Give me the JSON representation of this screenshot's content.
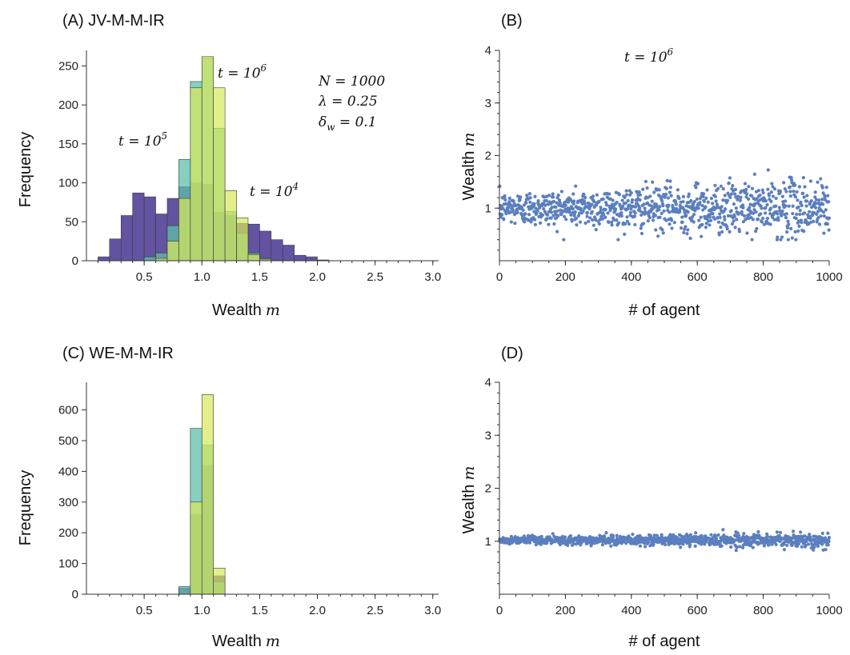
{
  "chart_data": [
    {
      "id": "A",
      "type": "histogram",
      "title": "(A) JV-M-M-IR",
      "xlabel": "Wealth",
      "xlabel_var": "m",
      "ylabel": "Frequency",
      "xlim": [
        0,
        3.05
      ],
      "ylim": [
        0,
        270
      ],
      "xticks": [
        0.5,
        1.0,
        1.5,
        2.0,
        2.5,
        3.0
      ],
      "xtick_labels": [
        "0.5",
        "1.0",
        "1.5",
        "2.0",
        "2.5",
        "3.0"
      ],
      "yticks": [
        0,
        50,
        100,
        150,
        200,
        250
      ],
      "ytick_labels": [
        "0",
        "50",
        "100",
        "150",
        "200",
        "250"
      ],
      "bin_width": 0.1,
      "bin_start": 0.1,
      "series": [
        {
          "name": "t = 10^4",
          "color": "#5b4a9c",
          "opacity": 0.95,
          "values": [
            5,
            28,
            58,
            87,
            82,
            60,
            80,
            95,
            100,
            98,
            62,
            58,
            48,
            47,
            38,
            27,
            20,
            7,
            5,
            1,
            0,
            0,
            0,
            0,
            0,
            0,
            0,
            0,
            0
          ]
        },
        {
          "name": "t = 10^5",
          "color": "#5fbfaa",
          "opacity": 0.75,
          "values": [
            0,
            0,
            0,
            0,
            5,
            10,
            45,
            130,
            230,
            260,
            170,
            63,
            35,
            10,
            3,
            0,
            0,
            0,
            0,
            0,
            0,
            0,
            0,
            0,
            0,
            0,
            0,
            0,
            0
          ]
        },
        {
          "name": "t = 10^6",
          "color": "#d7e85a",
          "opacity": 0.7,
          "values": [
            0,
            0,
            0,
            0,
            0,
            3,
            25,
            80,
            222,
            262,
            222,
            90,
            55,
            8,
            2,
            0,
            0,
            0,
            0,
            0,
            0,
            0,
            0,
            0,
            0,
            0,
            0,
            0,
            0
          ]
        }
      ],
      "annotations": [
        {
          "base": "t = 10",
          "exp": "6"
        },
        {
          "base": "t = 10",
          "exp": "5"
        },
        {
          "base": "t = 10",
          "exp": "4"
        }
      ],
      "params": [
        "N = 1000",
        "λ = 0.25",
        "δ_w = 0.1"
      ]
    },
    {
      "id": "B",
      "type": "scatter",
      "title": "(B)",
      "xlabel": "# of agent",
      "ylabel": "Wealth",
      "ylabel_var": "m",
      "xlim": [
        0,
        1000
      ],
      "ylim": [
        0,
        4
      ],
      "xticks": [
        0,
        200,
        400,
        600,
        800,
        1000
      ],
      "xtick_labels": [
        "0",
        "200",
        "400",
        "600",
        "800",
        "1000"
      ],
      "yticks": [
        1,
        2,
        3,
        4
      ],
      "ytick_labels": [
        "1",
        "2",
        "3",
        "4"
      ],
      "color": "#5b7fbf",
      "n_points": 1000,
      "mean": 1.0,
      "spread": 0.15,
      "annotation": {
        "base": "t = 10",
        "exp": "6"
      }
    },
    {
      "id": "C",
      "type": "histogram",
      "title": "(C) WE-M-M-IR",
      "xlabel": "Wealth",
      "xlabel_var": "m",
      "ylabel": "Frequency",
      "xlim": [
        0,
        3.05
      ],
      "ylim": [
        0,
        690
      ],
      "xticks": [
        0.5,
        1.0,
        1.5,
        2.0,
        2.5,
        3.0
      ],
      "xtick_labels": [
        "0.5",
        "1.0",
        "1.5",
        "2.0",
        "2.5",
        "3.0"
      ],
      "yticks": [
        0,
        100,
        200,
        300,
        400,
        500,
        600
      ],
      "ytick_labels": [
        "0",
        "100",
        "200",
        "300",
        "400",
        "500",
        "600"
      ],
      "bin_width": 0.1,
      "bin_start": 0.8,
      "series": [
        {
          "name": "t = 10^4",
          "color": "#5b4a9c",
          "opacity": 0.95,
          "values": [
            20,
            260,
            420,
            60
          ]
        },
        {
          "name": "t = 10^5",
          "color": "#5fbfaa",
          "opacity": 0.75,
          "values": [
            25,
            540,
            485,
            40
          ]
        },
        {
          "name": "t = 10^6",
          "color": "#d7e85a",
          "opacity": 0.7,
          "values": [
            0,
            300,
            650,
            85
          ]
        }
      ]
    },
    {
      "id": "D",
      "type": "scatter",
      "title": "(D)",
      "xlabel": "# of agent",
      "ylabel": "Wealth",
      "ylabel_var": "m",
      "xlim": [
        0,
        1000
      ],
      "ylim": [
        0,
        4
      ],
      "xticks": [
        0,
        200,
        400,
        600,
        800,
        1000
      ],
      "xtick_labels": [
        "0",
        "200",
        "400",
        "600",
        "800",
        "1000"
      ],
      "yticks": [
        1,
        2,
        3,
        4
      ],
      "ytick_labels": [
        "1",
        "2",
        "3",
        "4"
      ],
      "color": "#5b7fbf",
      "n_points": 1000,
      "mean": 1.02,
      "spread": 0.035
    }
  ]
}
